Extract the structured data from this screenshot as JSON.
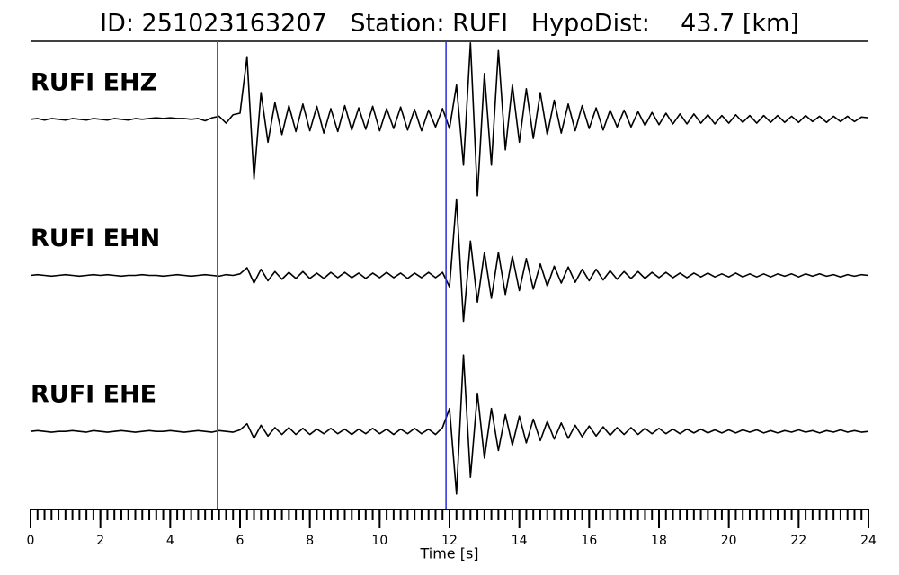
{
  "chart_data": {
    "type": "seismogram",
    "title": "ID: 251023163207   Station: RUFI   HypoDist:    43.7 [km]",
    "xlabel": "Time [s]",
    "xlim": [
      0,
      24
    ],
    "xticks": [
      0,
      2,
      4,
      6,
      8,
      10,
      12,
      14,
      16,
      18,
      20,
      22,
      24
    ],
    "ylim": [
      -1,
      1
    ],
    "label_color": "#4e9a06",
    "markers": [
      {
        "time": 5.35,
        "color": "#e8222a"
      },
      {
        "time": 11.9,
        "color": "#2a2ae0"
      }
    ],
    "x": [
      0,
      0.2,
      0.4,
      0.6,
      0.8,
      1,
      1.2,
      1.4,
      1.6,
      1.8,
      2,
      2.2,
      2.4,
      2.6,
      2.8,
      3,
      3.2,
      3.4,
      3.6,
      3.8,
      4,
      4.2,
      4.4,
      4.6,
      4.8,
      5,
      5.2,
      5.4,
      5.6,
      5.8,
      6,
      6.2,
      6.4,
      6.6,
      6.8,
      7,
      7.2,
      7.4,
      7.6,
      7.8,
      8,
      8.2,
      8.4,
      8.6,
      8.8,
      9,
      9.2,
      9.4,
      9.6,
      9.8,
      10,
      10.2,
      10.4,
      10.6,
      10.8,
      11,
      11.2,
      11.4,
      11.6,
      11.8,
      12,
      12.2,
      12.4,
      12.6,
      12.8,
      13,
      13.2,
      13.4,
      13.6,
      13.8,
      14,
      14.2,
      14.4,
      14.6,
      14.8,
      15,
      15.2,
      15.4,
      15.6,
      15.8,
      16,
      16.2,
      16.4,
      16.6,
      16.8,
      17,
      17.2,
      17.4,
      17.6,
      17.8,
      18,
      18.2,
      18.4,
      18.6,
      18.8,
      19,
      19.2,
      19.4,
      19.6,
      19.8,
      20,
      20.2,
      20.4,
      20.6,
      20.8,
      21,
      21.2,
      21.4,
      21.6,
      21.8,
      22,
      22.2,
      22.4,
      22.6,
      22.8,
      23,
      23.2,
      23.4,
      23.6,
      23.8,
      24
    ],
    "series": [
      {
        "name": "RUFI EHZ",
        "color": "#000000",
        "values": [
          0,
          0.01,
          -0.01,
          0.01,
          0,
          -0.01,
          0.01,
          0,
          -0.01,
          0.01,
          0,
          -0.01,
          0.01,
          0,
          -0.01,
          0.01,
          0,
          0.01,
          0.02,
          0.01,
          0.02,
          0.01,
          0.01,
          0,
          0.01,
          -0.02,
          0.02,
          0.04,
          -0.05,
          0.06,
          0.08,
          0.82,
          -0.78,
          0.35,
          -0.3,
          0.22,
          -0.2,
          0.18,
          -0.16,
          0.2,
          -0.15,
          0.17,
          -0.18,
          0.14,
          -0.16,
          0.18,
          -0.14,
          0.15,
          -0.13,
          0.17,
          -0.15,
          0.14,
          -0.12,
          0.16,
          -0.14,
          0.13,
          -0.15,
          0.12,
          -0.1,
          0.14,
          -0.12,
          0.45,
          -0.6,
          1.0,
          -1.0,
          0.6,
          -0.6,
          0.9,
          -0.4,
          0.45,
          -0.3,
          0.4,
          -0.25,
          0.35,
          -0.2,
          0.25,
          -0.18,
          0.2,
          -0.15,
          0.18,
          -0.12,
          0.15,
          -0.14,
          0.12,
          -0.1,
          0.12,
          -0.1,
          0.1,
          -0.08,
          0.09,
          -0.07,
          0.08,
          -0.06,
          0.07,
          -0.06,
          0.07,
          -0.05,
          0.06,
          -0.06,
          0.05,
          -0.05,
          0.06,
          -0.04,
          0.05,
          -0.05,
          0.05,
          -0.04,
          0.05,
          -0.04,
          0.04,
          -0.04,
          0.05,
          -0.03,
          0.04,
          -0.04,
          0.04,
          -0.03,
          0.04,
          -0.03,
          0.03,
          0.02
        ]
      },
      {
        "name": "RUFI EHN",
        "color": "#000000",
        "values": [
          0,
          0.01,
          0,
          -0.01,
          0,
          0.01,
          0,
          -0.01,
          0,
          0.01,
          0,
          0.01,
          0,
          -0.01,
          0,
          0,
          0.01,
          0,
          0,
          -0.01,
          0,
          0.01,
          0,
          -0.01,
          0,
          0.01,
          0,
          -0.01,
          0.01,
          0,
          0.02,
          0.1,
          -0.1,
          0.08,
          -0.07,
          0.05,
          -0.05,
          0.04,
          -0.04,
          0.05,
          -0.04,
          0.03,
          -0.04,
          0.04,
          -0.03,
          0.04,
          -0.03,
          0.03,
          -0.04,
          0.03,
          -0.03,
          0.04,
          -0.03,
          0.03,
          -0.04,
          0.03,
          -0.03,
          0.04,
          -0.03,
          0.04,
          -0.15,
          1.0,
          -0.6,
          0.45,
          -0.35,
          0.3,
          -0.3,
          0.3,
          -0.25,
          0.25,
          -0.2,
          0.22,
          -0.18,
          0.15,
          -0.14,
          0.12,
          -0.1,
          0.11,
          -0.09,
          0.08,
          -0.07,
          0.08,
          -0.06,
          0.06,
          -0.05,
          0.05,
          -0.04,
          0.05,
          -0.04,
          0.04,
          -0.03,
          0.04,
          -0.03,
          0.03,
          -0.03,
          0.03,
          -0.02,
          0.03,
          -0.02,
          0.02,
          -0.02,
          0.03,
          -0.02,
          0.02,
          -0.02,
          0.02,
          -0.02,
          0.02,
          -0.01,
          0.02,
          -0.02,
          0.02,
          -0.01,
          0.02,
          -0.01,
          0.01,
          -0.02,
          0.01,
          -0.01,
          0.01,
          0
        ]
      },
      {
        "name": "RUFI EHE",
        "color": "#000000",
        "values": [
          0,
          0.01,
          0,
          -0.01,
          0,
          0,
          0.01,
          0,
          -0.01,
          0.01,
          0,
          -0.01,
          0,
          0.01,
          0,
          -0.01,
          0,
          0.01,
          0,
          0,
          0.01,
          0,
          -0.01,
          0,
          0.01,
          0,
          -0.01,
          0.01,
          0,
          -0.01,
          0.02,
          0.1,
          -0.09,
          0.08,
          -0.06,
          0.05,
          -0.04,
          0.05,
          -0.04,
          0.04,
          -0.04,
          0.03,
          -0.03,
          0.04,
          -0.03,
          0.03,
          -0.04,
          0.03,
          -0.03,
          0.04,
          -0.03,
          0.03,
          -0.04,
          0.03,
          -0.03,
          0.04,
          -0.03,
          0.03,
          -0.04,
          0.05,
          0.3,
          -0.82,
          1.0,
          -0.6,
          0.5,
          -0.35,
          0.3,
          -0.25,
          0.22,
          -0.18,
          0.2,
          -0.15,
          0.16,
          -0.12,
          0.13,
          -0.1,
          0.11,
          -0.09,
          0.08,
          -0.07,
          0.07,
          -0.06,
          0.06,
          -0.05,
          0.05,
          -0.04,
          0.05,
          -0.04,
          0.04,
          -0.03,
          0.04,
          -0.03,
          0.03,
          -0.03,
          0.03,
          -0.02,
          0.03,
          -0.02,
          0.02,
          -0.02,
          0.02,
          -0.02,
          0.02,
          -0.01,
          0.02,
          -0.02,
          0.01,
          -0.02,
          0.01,
          -0.01,
          0.02,
          -0.01,
          0.01,
          -0.02,
          0.01,
          -0.01,
          0.02,
          -0.01,
          0.01,
          -0.01,
          0
        ]
      }
    ]
  }
}
